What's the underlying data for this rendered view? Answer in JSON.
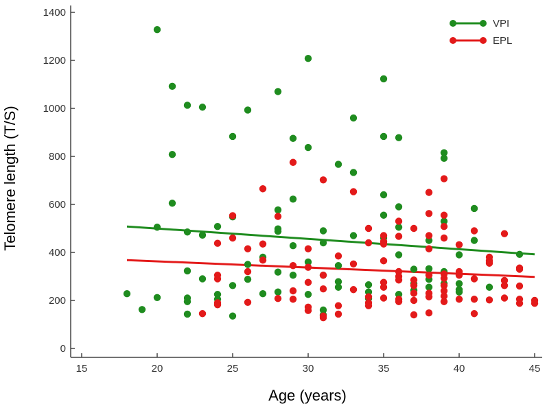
{
  "chart_data": {
    "type": "scatter",
    "title": "",
    "xlabel": "Age (years)",
    "ylabel": "Telomere length (T/S)",
    "xlim": [
      15,
      45
    ],
    "ylim": [
      0,
      1400
    ],
    "x_ticks": [
      "15",
      "20",
      "25",
      "30",
      "35",
      "40",
      "45"
    ],
    "y_ticks": [
      "0",
      "200",
      "400",
      "600",
      "800",
      "1000",
      "1200",
      "1400"
    ],
    "grid": false,
    "legend": {
      "position": "top-right"
    },
    "series": [
      {
        "name": "VPI",
        "color": "#1f8c1f",
        "trend_line": [
          [
            18,
            508
          ],
          [
            45,
            392
          ]
        ],
        "points": [
          [
            18,
            228
          ],
          [
            19,
            162
          ],
          [
            20,
            1328
          ],
          [
            20,
            505
          ],
          [
            20,
            212
          ],
          [
            21,
            1092
          ],
          [
            21,
            808
          ],
          [
            21,
            605
          ],
          [
            22,
            1013
          ],
          [
            22,
            485
          ],
          [
            22,
            323
          ],
          [
            22,
            210
          ],
          [
            22,
            195
          ],
          [
            22,
            143
          ],
          [
            23,
            1005
          ],
          [
            23,
            472
          ],
          [
            23,
            290
          ],
          [
            24,
            508
          ],
          [
            24,
            225
          ],
          [
            24,
            205
          ],
          [
            25,
            883
          ],
          [
            25,
            548
          ],
          [
            25,
            262
          ],
          [
            25,
            135
          ],
          [
            26,
            993
          ],
          [
            26,
            350
          ],
          [
            26,
            288
          ],
          [
            27,
            380
          ],
          [
            27,
            228
          ],
          [
            28,
            1070
          ],
          [
            28,
            577
          ],
          [
            28,
            498
          ],
          [
            28,
            488
          ],
          [
            28,
            318
          ],
          [
            28,
            235
          ],
          [
            29,
            875
          ],
          [
            29,
            622
          ],
          [
            29,
            428
          ],
          [
            29,
            305
          ],
          [
            30,
            1208
          ],
          [
            30,
            837
          ],
          [
            30,
            360
          ],
          [
            30,
            225
          ],
          [
            31,
            490
          ],
          [
            31,
            440
          ],
          [
            31,
            305
          ],
          [
            31,
            160
          ],
          [
            31,
            140
          ],
          [
            32,
            767
          ],
          [
            32,
            345
          ],
          [
            32,
            278
          ],
          [
            32,
            255
          ],
          [
            33,
            960
          ],
          [
            33,
            733
          ],
          [
            33,
            470
          ],
          [
            34,
            265
          ],
          [
            34,
            235
          ],
          [
            34,
            208
          ],
          [
            35,
            1123
          ],
          [
            35,
            883
          ],
          [
            35,
            640
          ],
          [
            35,
            555
          ],
          [
            35,
            460
          ],
          [
            36,
            878
          ],
          [
            36,
            590
          ],
          [
            36,
            505
          ],
          [
            36,
            390
          ],
          [
            36,
            225
          ],
          [
            37,
            330
          ],
          [
            37,
            270
          ],
          [
            37,
            242
          ],
          [
            38,
            450
          ],
          [
            38,
            332
          ],
          [
            38,
            288
          ],
          [
            38,
            255
          ],
          [
            39,
            815
          ],
          [
            39,
            792
          ],
          [
            39,
            530
          ],
          [
            39,
            320
          ],
          [
            39,
            270
          ],
          [
            40,
            390
          ],
          [
            40,
            270
          ],
          [
            40,
            245
          ],
          [
            40,
            235
          ],
          [
            41,
            583
          ],
          [
            41,
            450
          ],
          [
            42,
            255
          ],
          [
            44,
            392
          ]
        ]
      },
      {
        "name": "EPL",
        "color": "#e31a1a",
        "trend_line": [
          [
            18,
            368
          ],
          [
            45,
            298
          ]
        ],
        "points": [
          [
            23,
            145
          ],
          [
            24,
            438
          ],
          [
            24,
            305
          ],
          [
            24,
            290
          ],
          [
            24,
            190
          ],
          [
            24,
            182
          ],
          [
            25,
            553
          ],
          [
            25,
            460
          ],
          [
            26,
            415
          ],
          [
            26,
            320
          ],
          [
            26,
            192
          ],
          [
            27,
            665
          ],
          [
            27,
            435
          ],
          [
            27,
            368
          ],
          [
            28,
            550
          ],
          [
            28,
            208
          ],
          [
            29,
            775
          ],
          [
            29,
            345
          ],
          [
            29,
            240
          ],
          [
            29,
            205
          ],
          [
            30,
            415
          ],
          [
            30,
            338
          ],
          [
            30,
            275
          ],
          [
            30,
            172
          ],
          [
            30,
            158
          ],
          [
            31,
            702
          ],
          [
            31,
            305
          ],
          [
            31,
            248
          ],
          [
            31,
            135
          ],
          [
            31,
            128
          ],
          [
            32,
            385
          ],
          [
            32,
            178
          ],
          [
            32,
            143
          ],
          [
            33,
            653
          ],
          [
            33,
            352
          ],
          [
            33,
            245
          ],
          [
            34,
            500
          ],
          [
            34,
            440
          ],
          [
            34,
            215
          ],
          [
            34,
            190
          ],
          [
            34,
            178
          ],
          [
            35,
            470
          ],
          [
            35,
            445
          ],
          [
            35,
            435
          ],
          [
            35,
            365
          ],
          [
            35,
            275
          ],
          [
            35,
            255
          ],
          [
            35,
            210
          ],
          [
            36,
            530
          ],
          [
            36,
            467
          ],
          [
            36,
            320
          ],
          [
            36,
            300
          ],
          [
            36,
            285
          ],
          [
            36,
            205
          ],
          [
            36,
            195
          ],
          [
            37,
            500
          ],
          [
            37,
            285
          ],
          [
            37,
            262
          ],
          [
            37,
            230
          ],
          [
            37,
            200
          ],
          [
            37,
            140
          ],
          [
            38,
            650
          ],
          [
            38,
            562
          ],
          [
            38,
            470
          ],
          [
            38,
            415
          ],
          [
            38,
            305
          ],
          [
            38,
            230
          ],
          [
            38,
            215
          ],
          [
            38,
            148
          ],
          [
            39,
            707
          ],
          [
            39,
            555
          ],
          [
            39,
            508
          ],
          [
            39,
            460
          ],
          [
            39,
            310
          ],
          [
            39,
            292
          ],
          [
            39,
            262
          ],
          [
            39,
            240
          ],
          [
            39,
            218
          ],
          [
            39,
            195
          ],
          [
            40,
            432
          ],
          [
            40,
            320
          ],
          [
            40,
            305
          ],
          [
            40,
            205
          ],
          [
            41,
            490
          ],
          [
            41,
            290
          ],
          [
            41,
            205
          ],
          [
            41,
            145
          ],
          [
            42,
            380
          ],
          [
            42,
            365
          ],
          [
            42,
            355
          ],
          [
            42,
            202
          ],
          [
            43,
            478
          ],
          [
            43,
            283
          ],
          [
            43,
            262
          ],
          [
            43,
            210
          ],
          [
            44,
            335
          ],
          [
            44,
            330
          ],
          [
            44,
            260
          ],
          [
            44,
            205
          ],
          [
            44,
            188
          ],
          [
            45,
            200
          ],
          [
            45,
            188
          ]
        ]
      }
    ]
  }
}
